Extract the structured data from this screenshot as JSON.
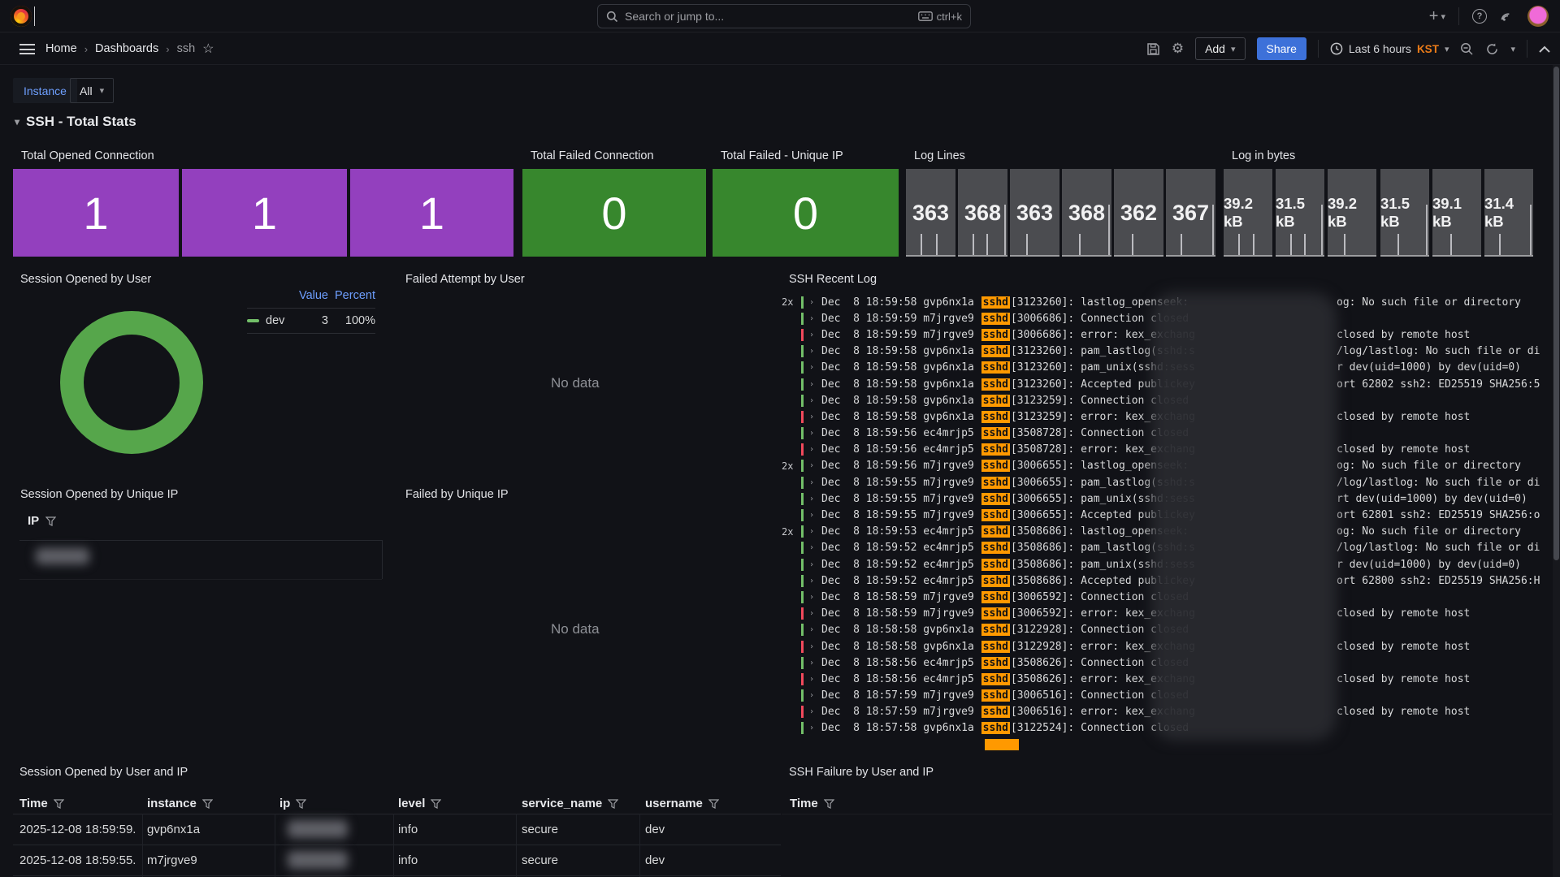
{
  "colors": {
    "purple": "#9340BE",
    "green": "#37872D",
    "gray_stat": "#4B4C50",
    "share_blue": "#3D71D9",
    "link_blue": "#6E9FFF",
    "kst_orange": "#EB7B18",
    "sshd_chip": "#FF9900",
    "log_ok": "#73BF69",
    "log_err": "#F2495C",
    "donut_green": "#56A64B"
  },
  "nav": {
    "search_placeholder": "Search or jump to...",
    "shortcut": "ctrl+k"
  },
  "breadcrumb": {
    "items": [
      "Home",
      "Dashboards",
      "ssh"
    ]
  },
  "toolbar": {
    "add_label": "Add",
    "share_label": "Share",
    "time_range": "Last 6 hours",
    "timezone": "KST"
  },
  "variables": {
    "instance_label": "Instance",
    "instance_value": "All"
  },
  "section": {
    "title": "SSH - Total Stats"
  },
  "stats": {
    "opened": {
      "title": "Total Opened Connection",
      "values": [
        "1",
        "1",
        "1"
      ]
    },
    "failed": {
      "title": "Total Failed Connection",
      "value": "0"
    },
    "failed_unique": {
      "title": "Total Failed - Unique IP",
      "value": "0"
    },
    "log_lines": {
      "title": "Log Lines",
      "values": [
        "363",
        "368",
        "363",
        "368",
        "362",
        "367"
      ]
    },
    "log_bytes": {
      "title": "Log in bytes",
      "values": [
        "39.2 kB",
        "31.5 kB",
        "39.2 kB",
        "31.5 kB",
        "39.1 kB",
        "31.4 kB"
      ]
    }
  },
  "session_by_user": {
    "title": "Session Opened by User",
    "legend": {
      "value_header": "Value",
      "percent_header": "Percent",
      "rows": [
        {
          "label": "dev",
          "value": "3",
          "percent": "100%"
        }
      ]
    },
    "chart": {
      "type": "pie",
      "slices": [
        {
          "label": "dev",
          "value": 3,
          "percent": 100,
          "color": "#56A64B"
        }
      ]
    }
  },
  "failed_by_user": {
    "title": "Failed Attempt by User",
    "empty": "No data"
  },
  "recent_log": {
    "title": "SSH Recent Log",
    "date_prefix": "Dec  8",
    "proc": "sshd",
    "lines": [
      {
        "count": "2x",
        "level": "ok",
        "time": "18:59:58",
        "host": "gvp6nx1a",
        "pid": "3123260",
        "msg": "lastlog_openseek:",
        "tail": "og: No such file or directory"
      },
      {
        "count": "",
        "level": "ok",
        "time": "18:59:59",
        "host": "m7jrgve9",
        "pid": "3006686",
        "msg": "Connection closed",
        "tail": ""
      },
      {
        "count": "",
        "level": "err",
        "time": "18:59:59",
        "host": "m7jrgve9",
        "pid": "3006686",
        "msg": "error: kex_exchang",
        "tail": "closed by remote host"
      },
      {
        "count": "",
        "level": "ok",
        "time": "18:59:58",
        "host": "gvp6nx1a",
        "pid": "3123260",
        "msg": "pam_lastlog(sshd:s",
        "tail": "/log/lastlog: No such file or di"
      },
      {
        "count": "",
        "level": "ok",
        "time": "18:59:58",
        "host": "gvp6nx1a",
        "pid": "3123260",
        "msg": "pam_unix(sshd:sess",
        "tail": "r dev(uid=1000) by dev(uid=0)"
      },
      {
        "count": "",
        "level": "ok",
        "time": "18:59:58",
        "host": "gvp6nx1a",
        "pid": "3123260",
        "msg": "Accepted publickey",
        "tail": "ort 62802 ssh2: ED25519 SHA256:5"
      },
      {
        "count": "",
        "level": "ok",
        "time": "18:59:58",
        "host": "gvp6nx1a",
        "pid": "3123259",
        "msg": "Connection closed",
        "tail": ""
      },
      {
        "count": "",
        "level": "err",
        "time": "18:59:58",
        "host": "gvp6nx1a",
        "pid": "3123259",
        "msg": "error: kex_exchang",
        "tail": "closed by remote host"
      },
      {
        "count": "",
        "level": "ok",
        "time": "18:59:56",
        "host": "ec4mrjp5",
        "pid": "3508728",
        "msg": "Connection closed",
        "tail": ""
      },
      {
        "count": "",
        "level": "err",
        "time": "18:59:56",
        "host": "ec4mrjp5",
        "pid": "3508728",
        "msg": "error: kex_exchang",
        "tail": "closed by remote host"
      },
      {
        "count": "2x",
        "level": "ok",
        "time": "18:59:56",
        "host": "m7jrgve9",
        "pid": "3006655",
        "msg": "lastlog_openseek:",
        "tail": "og: No such file or directory"
      },
      {
        "count": "",
        "level": "ok",
        "time": "18:59:55",
        "host": "m7jrgve9",
        "pid": "3006655",
        "msg": "pam_lastlog(sshd:s",
        "tail": "/log/lastlog: No such file or di"
      },
      {
        "count": "",
        "level": "ok",
        "time": "18:59:55",
        "host": "m7jrgve9",
        "pid": "3006655",
        "msg": "pam_unix(sshd:sess",
        "tail": "rt dev(uid=1000) by dev(uid=0)"
      },
      {
        "count": "",
        "level": "ok",
        "time": "18:59:55",
        "host": "m7jrgve9",
        "pid": "3006655",
        "msg": "Accepted publickey",
        "tail": "ort 62801 ssh2: ED25519 SHA256:o"
      },
      {
        "count": "2x",
        "level": "ok",
        "time": "18:59:53",
        "host": "ec4mrjp5",
        "pid": "3508686",
        "msg": "lastlog_openseek:",
        "tail": "og: No such file or directory"
      },
      {
        "count": "",
        "level": "ok",
        "time": "18:59:52",
        "host": "ec4mrjp5",
        "pid": "3508686",
        "msg": "pam_lastlog(sshd:s",
        "tail": "/log/lastlog: No such file or di"
      },
      {
        "count": "",
        "level": "ok",
        "time": "18:59:52",
        "host": "ec4mrjp5",
        "pid": "3508686",
        "msg": "pam_unix(sshd:sess",
        "tail": "r dev(uid=1000) by dev(uid=0)"
      },
      {
        "count": "",
        "level": "ok",
        "time": "18:59:52",
        "host": "ec4mrjp5",
        "pid": "3508686",
        "msg": "Accepted publickey",
        "tail": "ort 62800 ssh2: ED25519 SHA256:H"
      },
      {
        "count": "",
        "level": "ok",
        "time": "18:58:59",
        "host": "m7jrgve9",
        "pid": "3006592",
        "msg": "Connection closed",
        "tail": ""
      },
      {
        "count": "",
        "level": "err",
        "time": "18:58:59",
        "host": "m7jrgve9",
        "pid": "3006592",
        "msg": "error: kex_exchang",
        "tail": "closed by remote host"
      },
      {
        "count": "",
        "level": "ok",
        "time": "18:58:58",
        "host": "gvp6nx1a",
        "pid": "3122928",
        "msg": "Connection closed",
        "tail": ""
      },
      {
        "count": "",
        "level": "err",
        "time": "18:58:58",
        "host": "gvp6nx1a",
        "pid": "3122928",
        "msg": "error: kex_exchang",
        "tail": "closed by remote host"
      },
      {
        "count": "",
        "level": "ok",
        "time": "18:58:56",
        "host": "ec4mrjp5",
        "pid": "3508626",
        "msg": "Connection closed",
        "tail": ""
      },
      {
        "count": "",
        "level": "err",
        "time": "18:58:56",
        "host": "ec4mrjp5",
        "pid": "3508626",
        "msg": "error: kex_exchang",
        "tail": "closed by remote host"
      },
      {
        "count": "",
        "level": "ok",
        "time": "18:57:59",
        "host": "m7jrgve9",
        "pid": "3006516",
        "msg": "Connection closed",
        "tail": ""
      },
      {
        "count": "",
        "level": "err",
        "time": "18:57:59",
        "host": "m7jrgve9",
        "pid": "3006516",
        "msg": "error: kex_exchang",
        "tail": "closed by remote host"
      },
      {
        "count": "",
        "level": "ok",
        "time": "18:57:58",
        "host": "gvp6nx1a",
        "pid": "3122524",
        "msg": "Connection closed",
        "tail": ""
      }
    ]
  },
  "session_by_ip": {
    "title": "Session Opened by Unique IP",
    "column": "IP"
  },
  "failed_by_ip": {
    "title": "Failed by Unique IP",
    "empty": "No data"
  },
  "session_table": {
    "title": "Session Opened by User and IP",
    "columns": [
      "Time",
      "instance",
      "ip",
      "level",
      "service_name",
      "username"
    ],
    "rows": [
      {
        "time": "2025-12-08 18:59:59.",
        "instance": "gvp6nx1a",
        "ip": "",
        "level": "info",
        "service_name": "secure",
        "username": "dev"
      },
      {
        "time": "2025-12-08 18:59:55.",
        "instance": "m7jrgve9",
        "ip": "",
        "level": "info",
        "service_name": "secure",
        "username": "dev"
      }
    ]
  },
  "failure_table": {
    "title": "SSH Failure by User and IP",
    "columns": [
      "Time"
    ]
  }
}
